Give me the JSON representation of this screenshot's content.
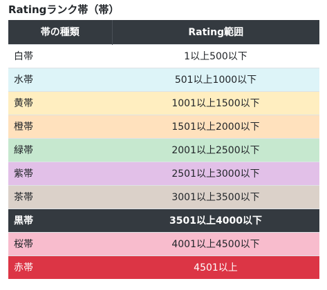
{
  "title": "Ratingランク帯（帯）",
  "table": {
    "headers": [
      "帯の種類",
      "Rating範囲"
    ],
    "rows": [
      {
        "band": "白帯",
        "range": "1以上500以下",
        "bg": "#ffffff",
        "fg": "#212529",
        "bold": false
      },
      {
        "band": "水帯",
        "range": "501以上1000以下",
        "bg": "#ddf4f8",
        "fg": "#212529",
        "bold": false
      },
      {
        "band": "黄帯",
        "range": "1001以上1500以下",
        "bg": "#ffeec0",
        "fg": "#212529",
        "bold": false
      },
      {
        "band": "橙帯",
        "range": "1501以上2000以下",
        "bg": "#ffe1bd",
        "fg": "#212529",
        "bold": false
      },
      {
        "band": "緑帯",
        "range": "2001以上2500以下",
        "bg": "#c6e8cf",
        "fg": "#212529",
        "bold": false
      },
      {
        "band": "紫帯",
        "range": "2501以上3000以下",
        "bg": "#e2c0e8",
        "fg": "#212529",
        "bold": false
      },
      {
        "band": "茶帯",
        "range": "3001以上3500以下",
        "bg": "#dbd1c9",
        "fg": "#212529",
        "bold": false
      },
      {
        "band": "黒帯",
        "range": "3501以上4000以下",
        "bg": "#343a40",
        "fg": "#ffffff",
        "bold": true
      },
      {
        "band": "桜帯",
        "range": "4001以上4500以下",
        "bg": "#f8bccd",
        "fg": "#212529",
        "bold": false
      },
      {
        "band": "赤帯",
        "range": "4501以上",
        "bg": "#dc3545",
        "fg": "#ffffff",
        "bold": false
      }
    ]
  }
}
